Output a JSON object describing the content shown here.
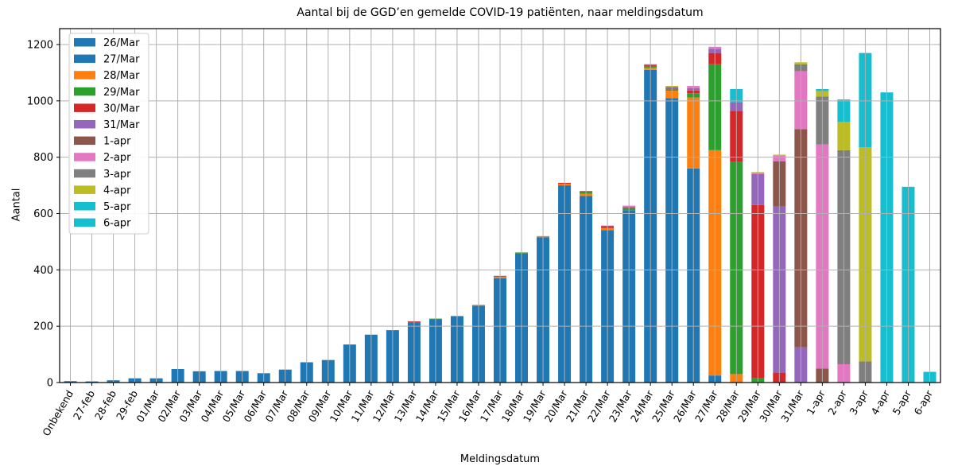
{
  "chart_data": {
    "type": "bar",
    "stacked": true,
    "title": "Aantal bij de GGD’en gemelde COVID-19 patiënten, naar meldingsdatum",
    "xlabel": "Meldingsdatum",
    "ylabel": "Aantal",
    "ylim": [
      0,
      1256
    ],
    "yticks": [
      0,
      200,
      400,
      600,
      800,
      1000,
      1200
    ],
    "grid": true,
    "grid_color": "#b0b0b0",
    "legend_position": "upper left",
    "categories": [
      "Onbekend",
      "27-feb",
      "28-feb",
      "29-feb",
      "01/Mar",
      "02/Mar",
      "03/Mar",
      "04/Mar",
      "05/Mar",
      "06/Mar",
      "07/Mar",
      "08/Mar",
      "09/Mar",
      "10/Mar",
      "11/Mar",
      "12/Mar",
      "13/Mar",
      "14/Mar",
      "15/Mar",
      "16/Mar",
      "17/Mar",
      "18/Mar",
      "19/Mar",
      "20/Mar",
      "21/Mar",
      "22/Mar",
      "23/Mar",
      "24/Mar",
      "25/Mar",
      "26/Mar",
      "27/Mar",
      "28/Mar",
      "29/Mar",
      "30/Mar",
      "31/Mar",
      "1-apr",
      "2-apr",
      "3-apr",
      "4-apr",
      "5-apr",
      "6-apr"
    ],
    "series": [
      {
        "name": "26/Mar",
        "color": "#1f77b4",
        "values": [
          5,
          4,
          8,
          15,
          15,
          48,
          40,
          41,
          41,
          33,
          46,
          72,
          80,
          135,
          170,
          186,
          214,
          223,
          236,
          273,
          370,
          458,
          516,
          700,
          662,
          541,
          612,
          1110,
          1010,
          760,
          0,
          0,
          0,
          0,
          0,
          0,
          0,
          0,
          0,
          0,
          0
        ]
      },
      {
        "name": "27/Mar",
        "color": "#1f77b4",
        "values": [
          0,
          0,
          0,
          0,
          0,
          0,
          0,
          0,
          0,
          0,
          0,
          0,
          0,
          0,
          0,
          0,
          0,
          0,
          0,
          0,
          0,
          0,
          0,
          0,
          0,
          0,
          0,
          0,
          0,
          0,
          25,
          0,
          0,
          0,
          0,
          0,
          0,
          0,
          0,
          0,
          0
        ]
      },
      {
        "name": "28/Mar",
        "color": "#ff7f0e",
        "values": [
          0,
          0,
          0,
          0,
          0,
          0,
          0,
          0,
          0,
          0,
          0,
          0,
          0,
          0,
          0,
          0,
          0,
          0,
          0,
          3,
          5,
          0,
          4,
          6,
          8,
          8,
          0,
          8,
          26,
          252,
          800,
          30,
          0,
          0,
          0,
          0,
          0,
          0,
          0,
          0,
          0
        ]
      },
      {
        "name": "29/Mar",
        "color": "#2ca02c",
        "values": [
          0,
          0,
          0,
          0,
          0,
          0,
          0,
          0,
          0,
          0,
          0,
          0,
          0,
          0,
          0,
          0,
          0,
          4,
          0,
          0,
          0,
          4,
          0,
          0,
          6,
          0,
          6,
          6,
          5,
          15,
          305,
          755,
          15,
          0,
          0,
          0,
          0,
          0,
          0,
          0,
          0
        ]
      },
      {
        "name": "30/Mar",
        "color": "#d62728",
        "values": [
          0,
          0,
          0,
          0,
          0,
          0,
          0,
          0,
          0,
          0,
          0,
          0,
          0,
          0,
          0,
          0,
          3,
          0,
          0,
          0,
          2,
          0,
          0,
          3,
          2,
          6,
          4,
          3,
          3,
          10,
          40,
          180,
          615,
          35,
          0,
          0,
          0,
          0,
          0,
          0,
          0
        ]
      },
      {
        "name": "31/Mar",
        "color": "#9467bd",
        "values": [
          0,
          0,
          0,
          0,
          0,
          0,
          0,
          0,
          0,
          0,
          0,
          0,
          0,
          0,
          0,
          0,
          0,
          0,
          0,
          0,
          2,
          0,
          0,
          0,
          0,
          2,
          0,
          3,
          5,
          8,
          15,
          30,
          110,
          590,
          125,
          0,
          0,
          0,
          0,
          0,
          0
        ]
      },
      {
        "name": "1-apr",
        "color": "#8c564b",
        "values": [
          0,
          0,
          0,
          0,
          0,
          0,
          0,
          0,
          0,
          0,
          0,
          0,
          0,
          0,
          0,
          0,
          0,
          0,
          0,
          0,
          0,
          0,
          0,
          0,
          2,
          0,
          0,
          0,
          0,
          0,
          0,
          0,
          0,
          160,
          775,
          50,
          0,
          0,
          0,
          0,
          0
        ]
      },
      {
        "name": "2-apr",
        "color": "#e377c2",
        "values": [
          0,
          0,
          0,
          0,
          0,
          0,
          0,
          0,
          0,
          0,
          0,
          0,
          0,
          0,
          0,
          0,
          0,
          0,
          0,
          0,
          0,
          0,
          0,
          0,
          0,
          0,
          6,
          0,
          0,
          8,
          7,
          0,
          4,
          20,
          205,
          795,
          65,
          0,
          0,
          0,
          0
        ]
      },
      {
        "name": "3-apr",
        "color": "#7f7f7f",
        "values": [
          0,
          0,
          0,
          0,
          0,
          0,
          0,
          0,
          0,
          0,
          0,
          0,
          0,
          0,
          0,
          0,
          0,
          0,
          0,
          0,
          0,
          0,
          0,
          0,
          0,
          0,
          0,
          0,
          0,
          0,
          0,
          0,
          0,
          0,
          25,
          170,
          760,
          75,
          0,
          0,
          0
        ]
      },
      {
        "name": "4-apr",
        "color": "#bcbd22",
        "values": [
          0,
          0,
          0,
          0,
          0,
          0,
          0,
          0,
          0,
          0,
          0,
          0,
          0,
          0,
          0,
          0,
          0,
          0,
          0,
          0,
          0,
          0,
          0,
          0,
          0,
          0,
          0,
          0,
          4,
          0,
          0,
          0,
          3,
          4,
          7,
          20,
          100,
          760,
          0,
          0,
          0
        ]
      },
      {
        "name": "5-apr",
        "color": "#17becf",
        "values": [
          0,
          0,
          0,
          0,
          0,
          0,
          0,
          0,
          0,
          0,
          0,
          0,
          0,
          0,
          0,
          0,
          0,
          0,
          0,
          0,
          0,
          0,
          0,
          0,
          0,
          0,
          0,
          0,
          0,
          0,
          0,
          47,
          0,
          0,
          0,
          7,
          80,
          335,
          1030,
          695,
          0
        ]
      },
      {
        "name": "6-apr",
        "color": "#17becf",
        "values": [
          0,
          0,
          0,
          0,
          0,
          0,
          0,
          0,
          0,
          0,
          0,
          0,
          0,
          0,
          0,
          0,
          0,
          0,
          0,
          0,
          0,
          0,
          0,
          0,
          0,
          0,
          0,
          0,
          0,
          0,
          0,
          0,
          0,
          0,
          0,
          0,
          0,
          0,
          0,
          0,
          38
        ]
      }
    ]
  }
}
